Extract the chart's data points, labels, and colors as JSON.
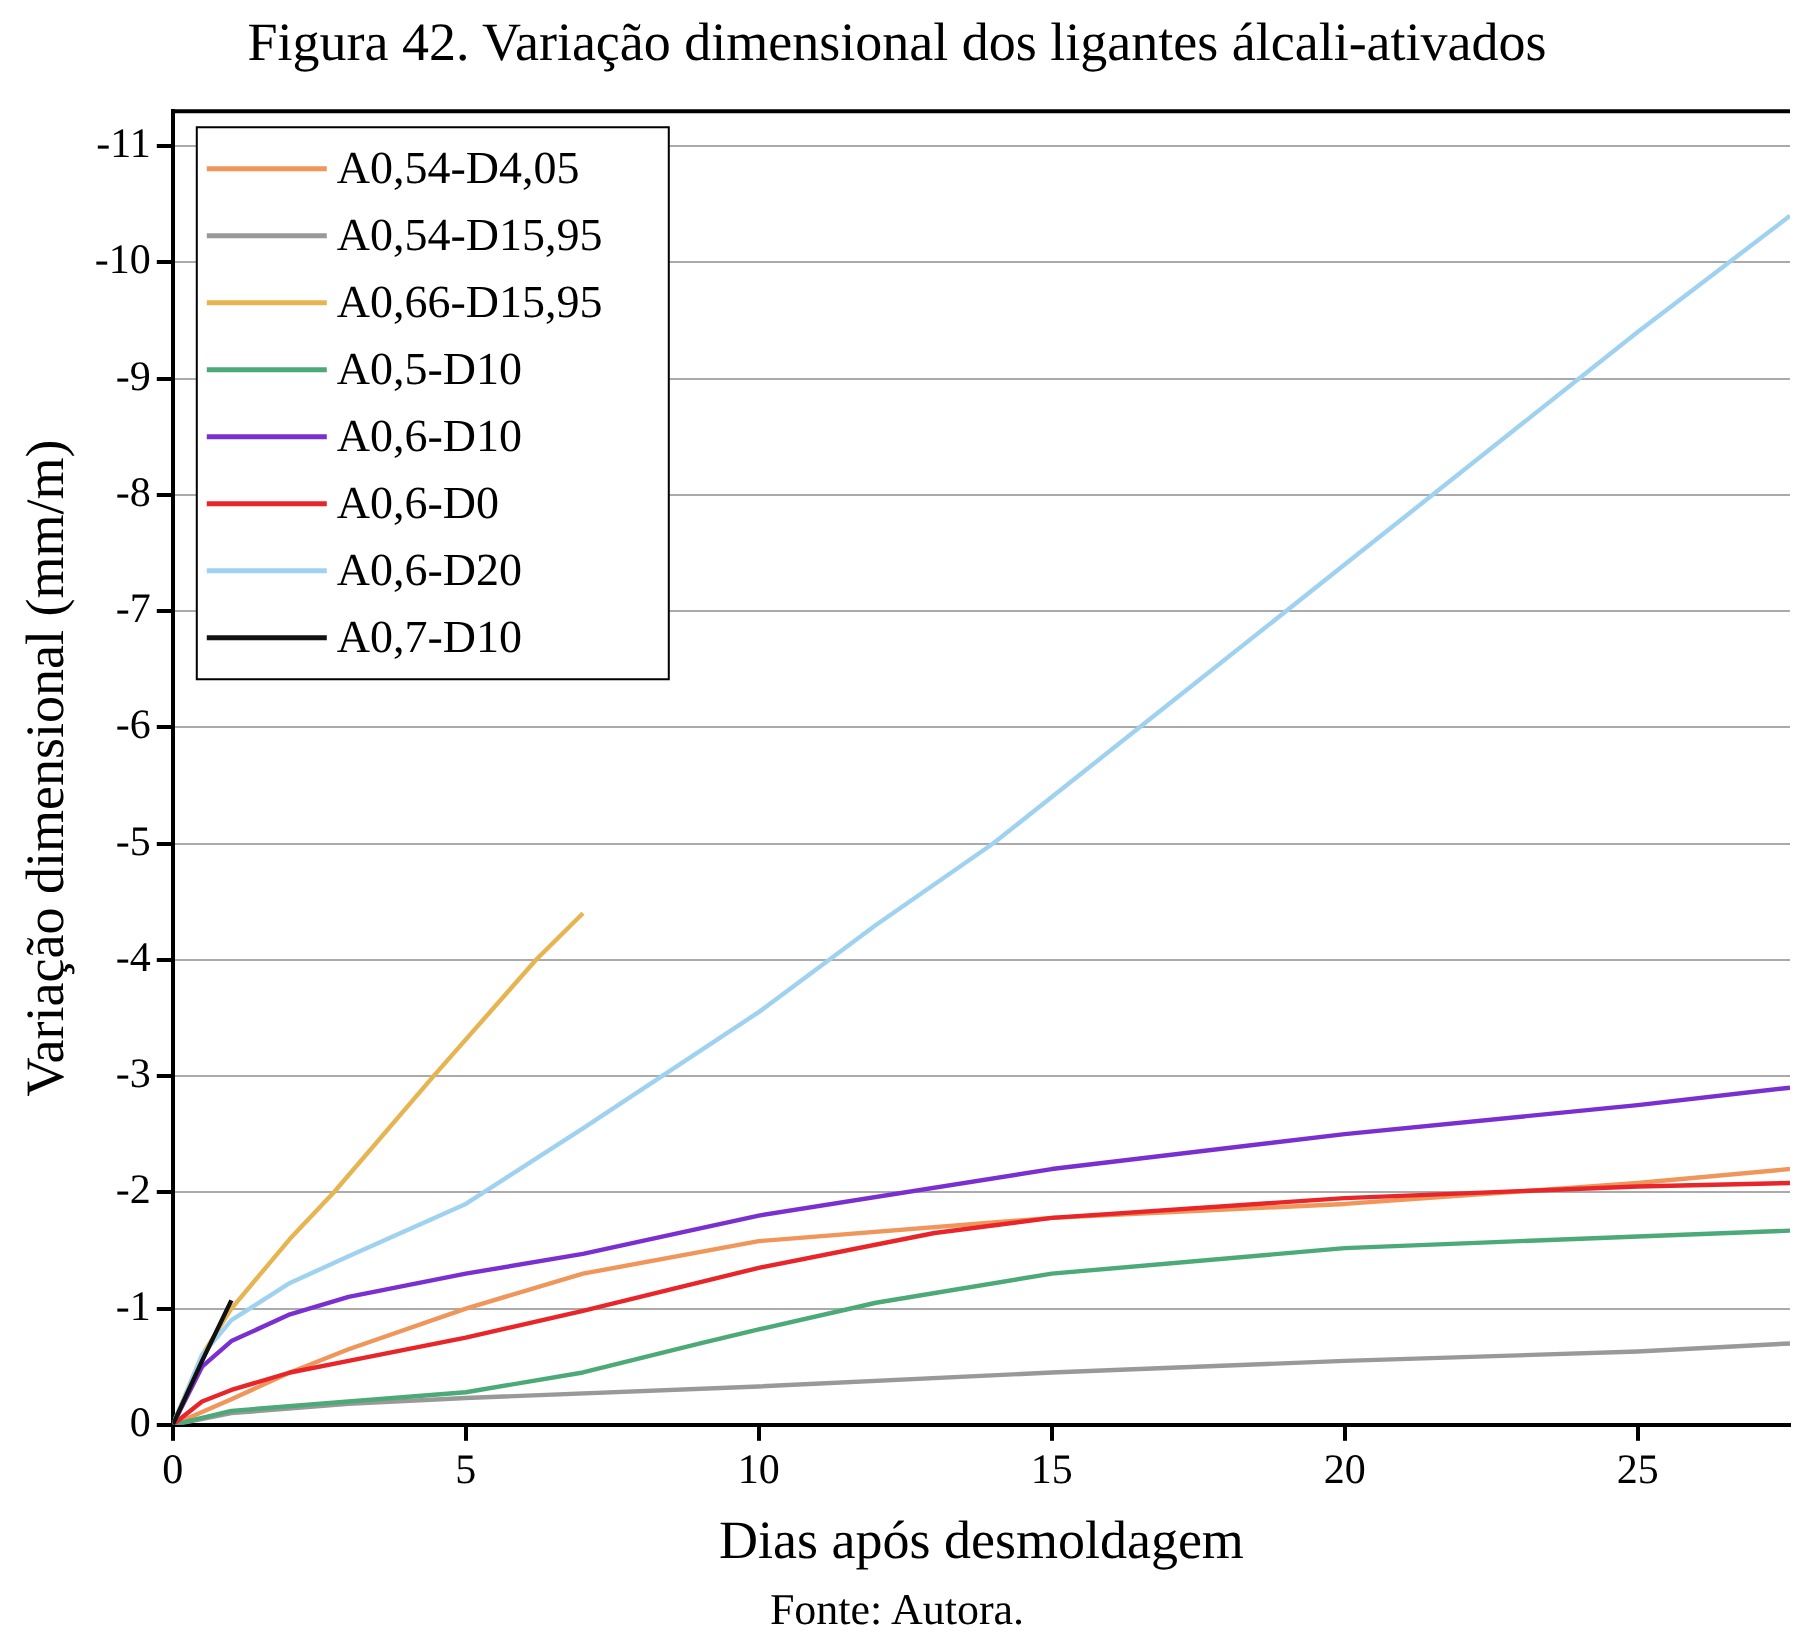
{
  "chart_data": {
    "type": "line",
    "title": "Figura 42. Variação dimensional dos ligantes álcali-ativados",
    "xlabel": "Dias após desmoldagem",
    "ylabel": "Variação dimensional (mm/m)",
    "annotations": [
      "Fonte: Autora."
    ],
    "xlim": [
      0,
      27.6
    ],
    "xticks": [
      0,
      5,
      10,
      15,
      20,
      25
    ],
    "ylim": [
      0,
      -11.3
    ],
    "yticks": [
      0,
      -1,
      -2,
      -3,
      -4,
      -5,
      -6,
      -7,
      -8,
      -9,
      -10,
      -11
    ],
    "grid": "y",
    "legend": "top left",
    "marker": "none",
    "line_style": "solid",
    "series": [
      {
        "name": "A0,54-D4,05",
        "color": "#f0965a",
        "x": [
          0,
          1,
          2,
          3,
          5,
          7,
          10,
          15,
          20,
          25,
          27.6
        ],
        "values": [
          0,
          -0.22,
          -0.45,
          -0.65,
          -1.0,
          -1.3,
          -1.58,
          -1.78,
          -1.9,
          -2.08,
          -2.2
        ]
      },
      {
        "name": "A0,54-D15,95",
        "color": "#999999",
        "x": [
          0,
          1,
          3,
          5,
          10,
          15,
          20,
          25,
          27.6
        ],
        "values": [
          0,
          -0.1,
          -0.18,
          -0.23,
          -0.33,
          -0.45,
          -0.55,
          -0.63,
          -0.7
        ]
      },
      {
        "name": "A0,66-D15,95",
        "color": "#e6b450",
        "x": [
          0,
          0.5,
          1,
          2,
          2.75,
          4.45,
          6.2,
          7
        ],
        "values": [
          0,
          -0.6,
          -1.0,
          -1.6,
          -2.0,
          -3.0,
          -4.0,
          -4.4
        ]
      },
      {
        "name": "A0,5-D10",
        "color": "#4caa78",
        "x": [
          0,
          1,
          3,
          5,
          7,
          9,
          10,
          12,
          15,
          20,
          25,
          27.6
        ],
        "values": [
          0,
          -0.12,
          -0.2,
          -0.28,
          -0.45,
          -0.7,
          -0.82,
          -1.05,
          -1.3,
          -1.52,
          -1.62,
          -1.67
        ]
      },
      {
        "name": "A0,6-D10",
        "color": "#7a2fd0",
        "x": [
          0,
          0.5,
          1,
          2,
          3,
          5,
          7,
          10,
          15,
          20,
          25,
          27.6
        ],
        "values": [
          0,
          -0.5,
          -0.72,
          -0.95,
          -1.1,
          -1.3,
          -1.47,
          -1.8,
          -2.2,
          -2.5,
          -2.75,
          -2.9
        ]
      },
      {
        "name": "A0,6-D0",
        "color": "#e8262a",
        "x": [
          0,
          0.5,
          1,
          2,
          3,
          5,
          7,
          10,
          13,
          15,
          20,
          25,
          27.6
        ],
        "values": [
          0,
          -0.2,
          -0.3,
          -0.45,
          -0.55,
          -0.75,
          -0.98,
          -1.35,
          -1.65,
          -1.78,
          -1.95,
          -2.05,
          -2.08
        ]
      },
      {
        "name": "A0,6-D20",
        "color": "#9fd2f0",
        "x": [
          0,
          0.5,
          1,
          2,
          3,
          5,
          7,
          10,
          12,
          14,
          17,
          20,
          23,
          25,
          27.6
        ],
        "values": [
          0,
          -0.6,
          -0.9,
          -1.22,
          -1.45,
          -1.9,
          -2.55,
          -3.55,
          -4.3,
          -5.0,
          -6.2,
          -7.4,
          -8.6,
          -9.4,
          -10.4
        ]
      },
      {
        "name": "A0,7-D10",
        "color": "#111111",
        "x": [
          0,
          0.5,
          1
        ],
        "values": [
          0,
          -0.55,
          -1.07
        ]
      }
    ]
  }
}
